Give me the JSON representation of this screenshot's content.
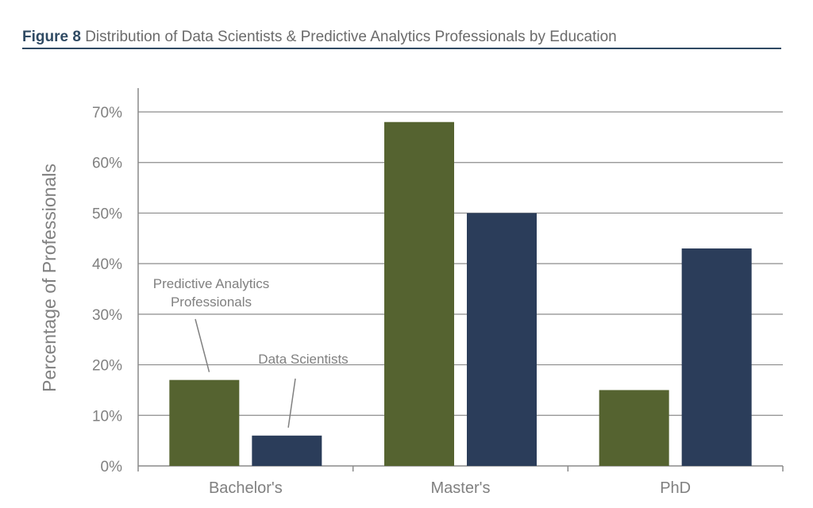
{
  "header": {
    "figure_number": "Figure 8",
    "title": "Distribution of Data Scientists & Predictive Analytics Professionals by Education"
  },
  "chart_data": {
    "type": "bar",
    "title": "Figure 8 Distribution of Data Scientists & Predictive Analytics Professionals by Education",
    "xlabel": "",
    "ylabel": "Percentage of Professionals",
    "categories": [
      "Bachelor's",
      "Master's",
      "PhD"
    ],
    "series": [
      {
        "name": "Predictive Analytics Professionals",
        "values": [
          17,
          68,
          15
        ],
        "color": "#556330"
      },
      {
        "name": "Data Scientists",
        "values": [
          6,
          50,
          43
        ],
        "color": "#2b3d5a"
      }
    ],
    "ylim": [
      0,
      70
    ],
    "yticks": [
      0,
      10,
      20,
      30,
      40,
      50,
      60,
      70
    ],
    "ytick_labels": [
      "0%",
      "10%",
      "20%",
      "30%",
      "40%",
      "50%",
      "60%",
      "70%"
    ],
    "grid": true,
    "legend": "callout annotations"
  },
  "annotations": [
    {
      "text": [
        "Predictive Analytics",
        "Professionals"
      ],
      "series": 0,
      "category": 0
    },
    {
      "text": [
        "Data Scientists"
      ],
      "series": 1,
      "category": 0
    }
  ],
  "colors": {
    "axis": "#8a8a8a",
    "grid": "#8c8c8c",
    "text": "#808080",
    "header_accent": "#2f4a63"
  }
}
